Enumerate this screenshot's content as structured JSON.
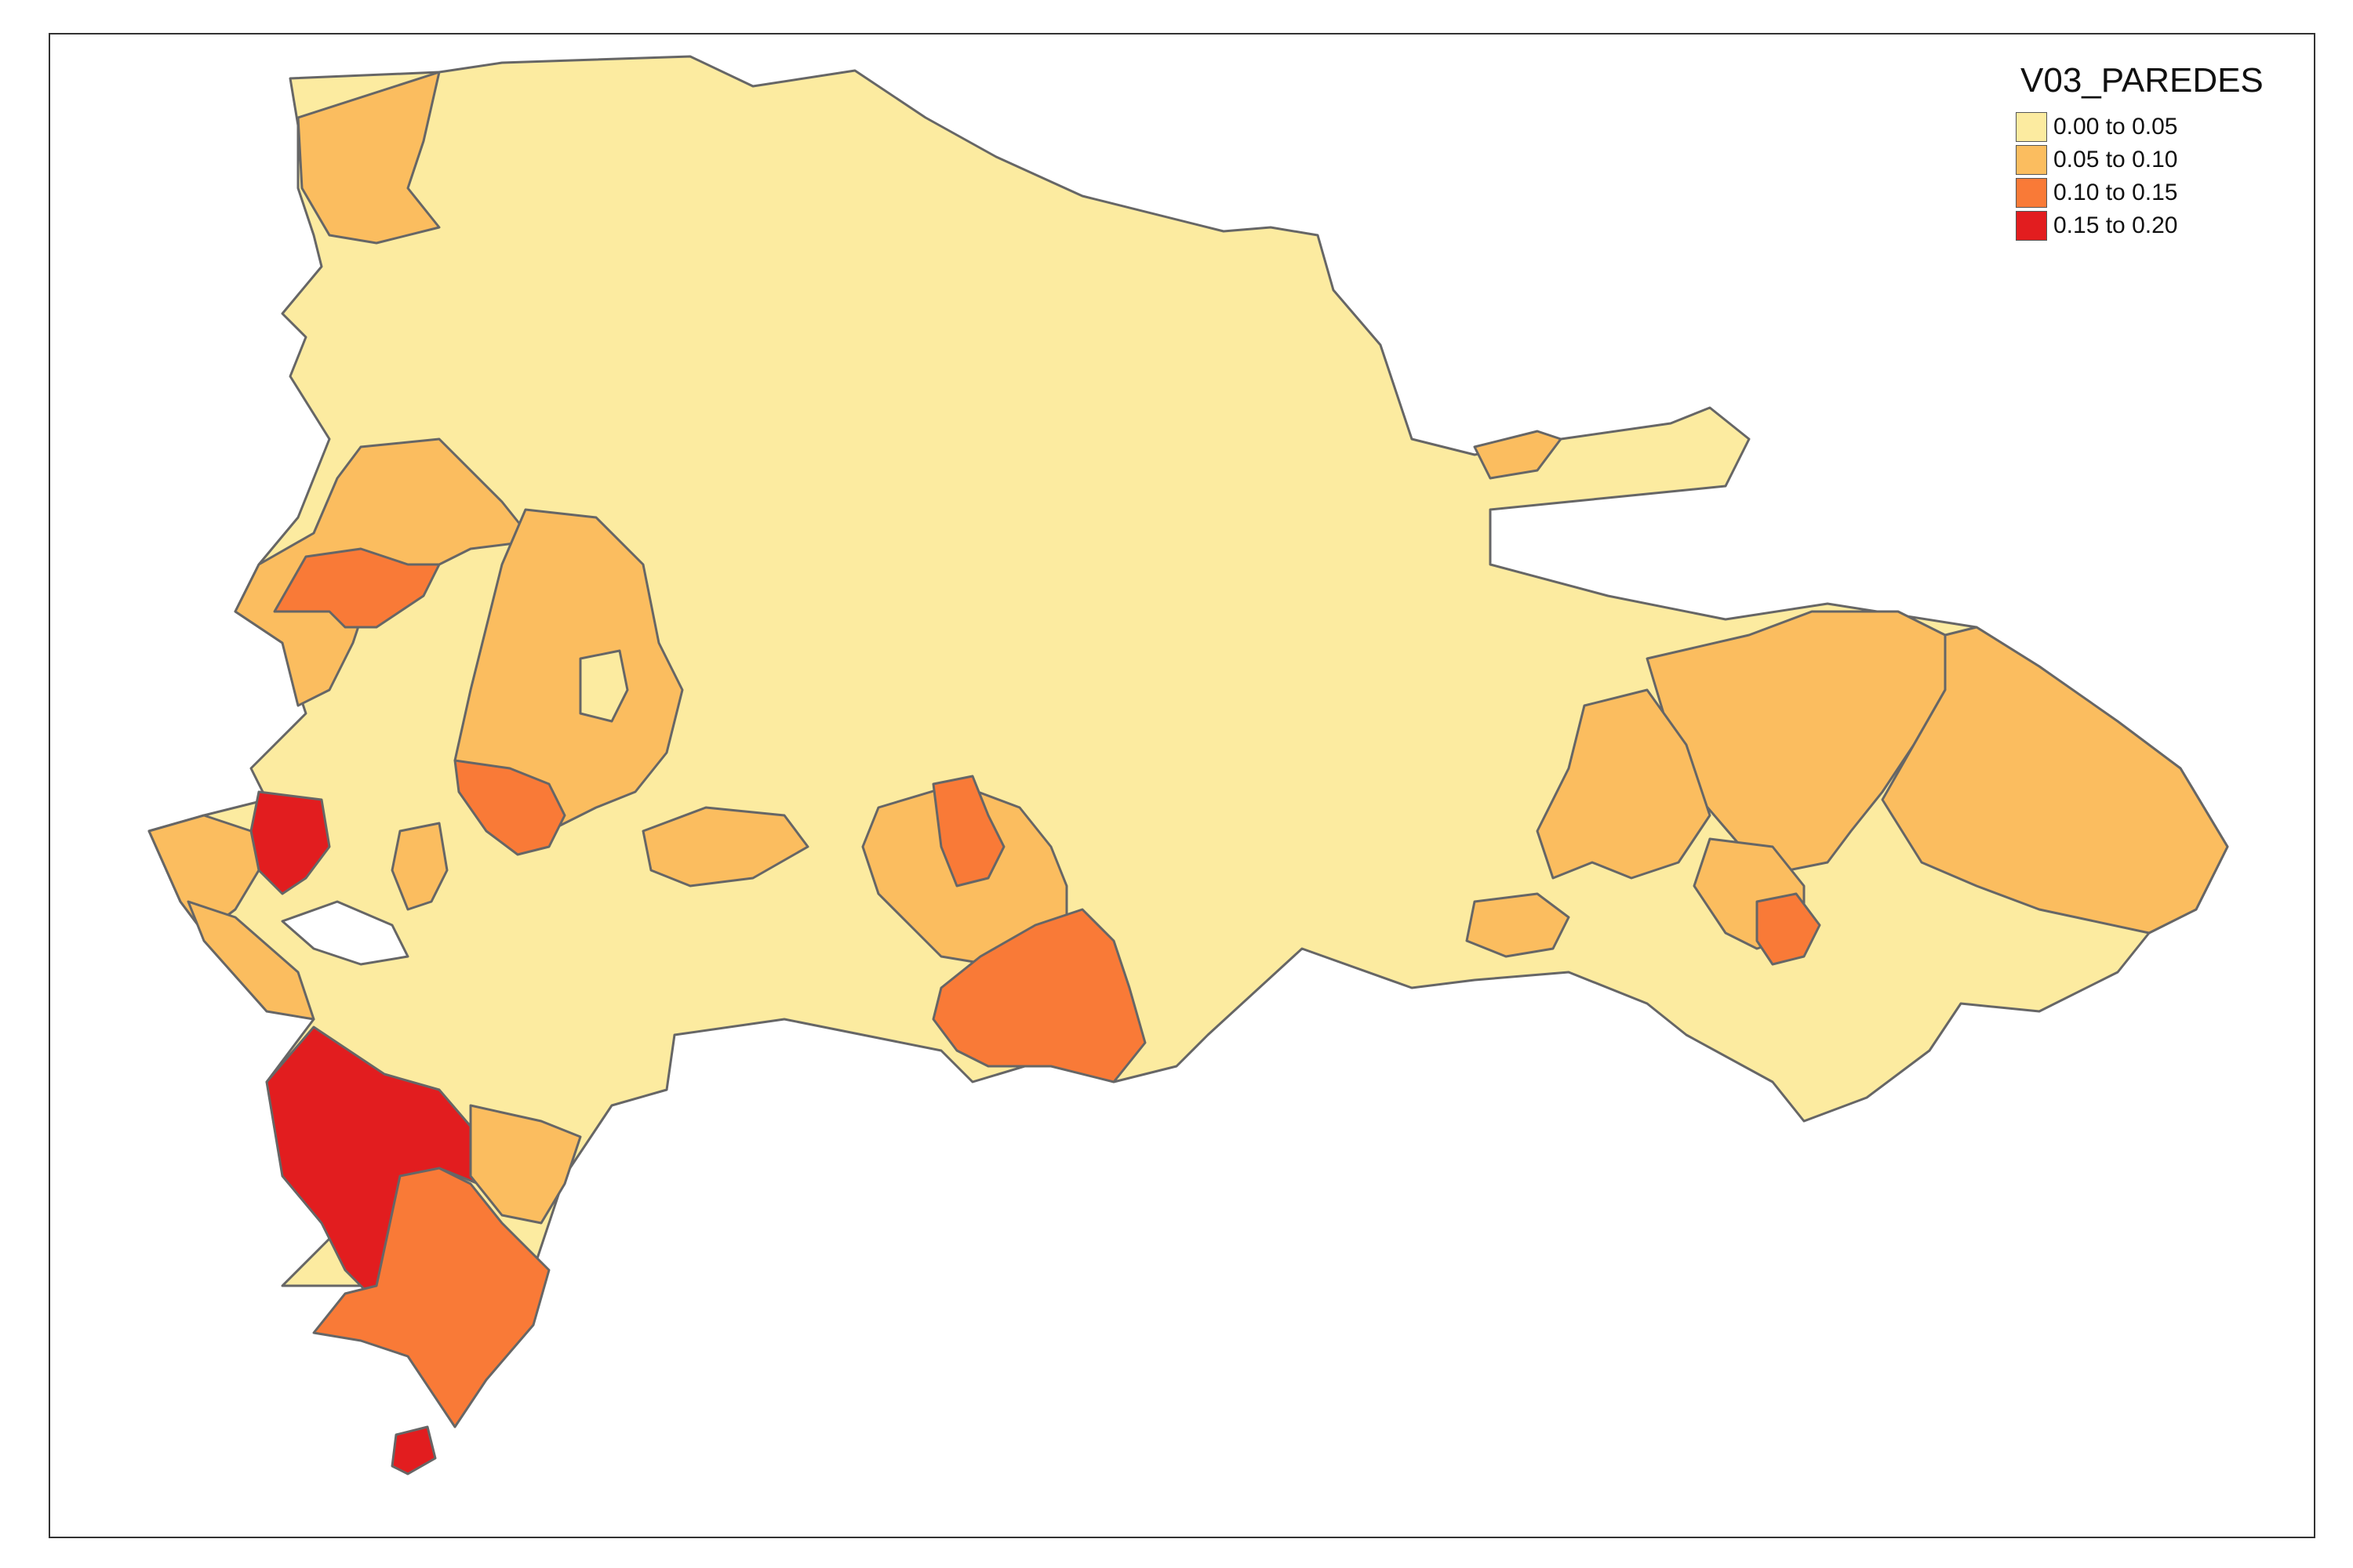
{
  "legend": {
    "title": "V03_PAREDES",
    "items": [
      {
        "label": "0.00 to 0.05",
        "color": "#FCEBA0"
      },
      {
        "label": "0.05 to 0.10",
        "color": "#FBBD5F"
      },
      {
        "label": "0.10 to 0.15",
        "color": "#F97A37"
      },
      {
        "label": "0.15 to 0.20",
        "color": "#E21D1F"
      }
    ]
  },
  "map": {
    "border_color": "#666666",
    "background": "#FFFFFF"
  }
}
